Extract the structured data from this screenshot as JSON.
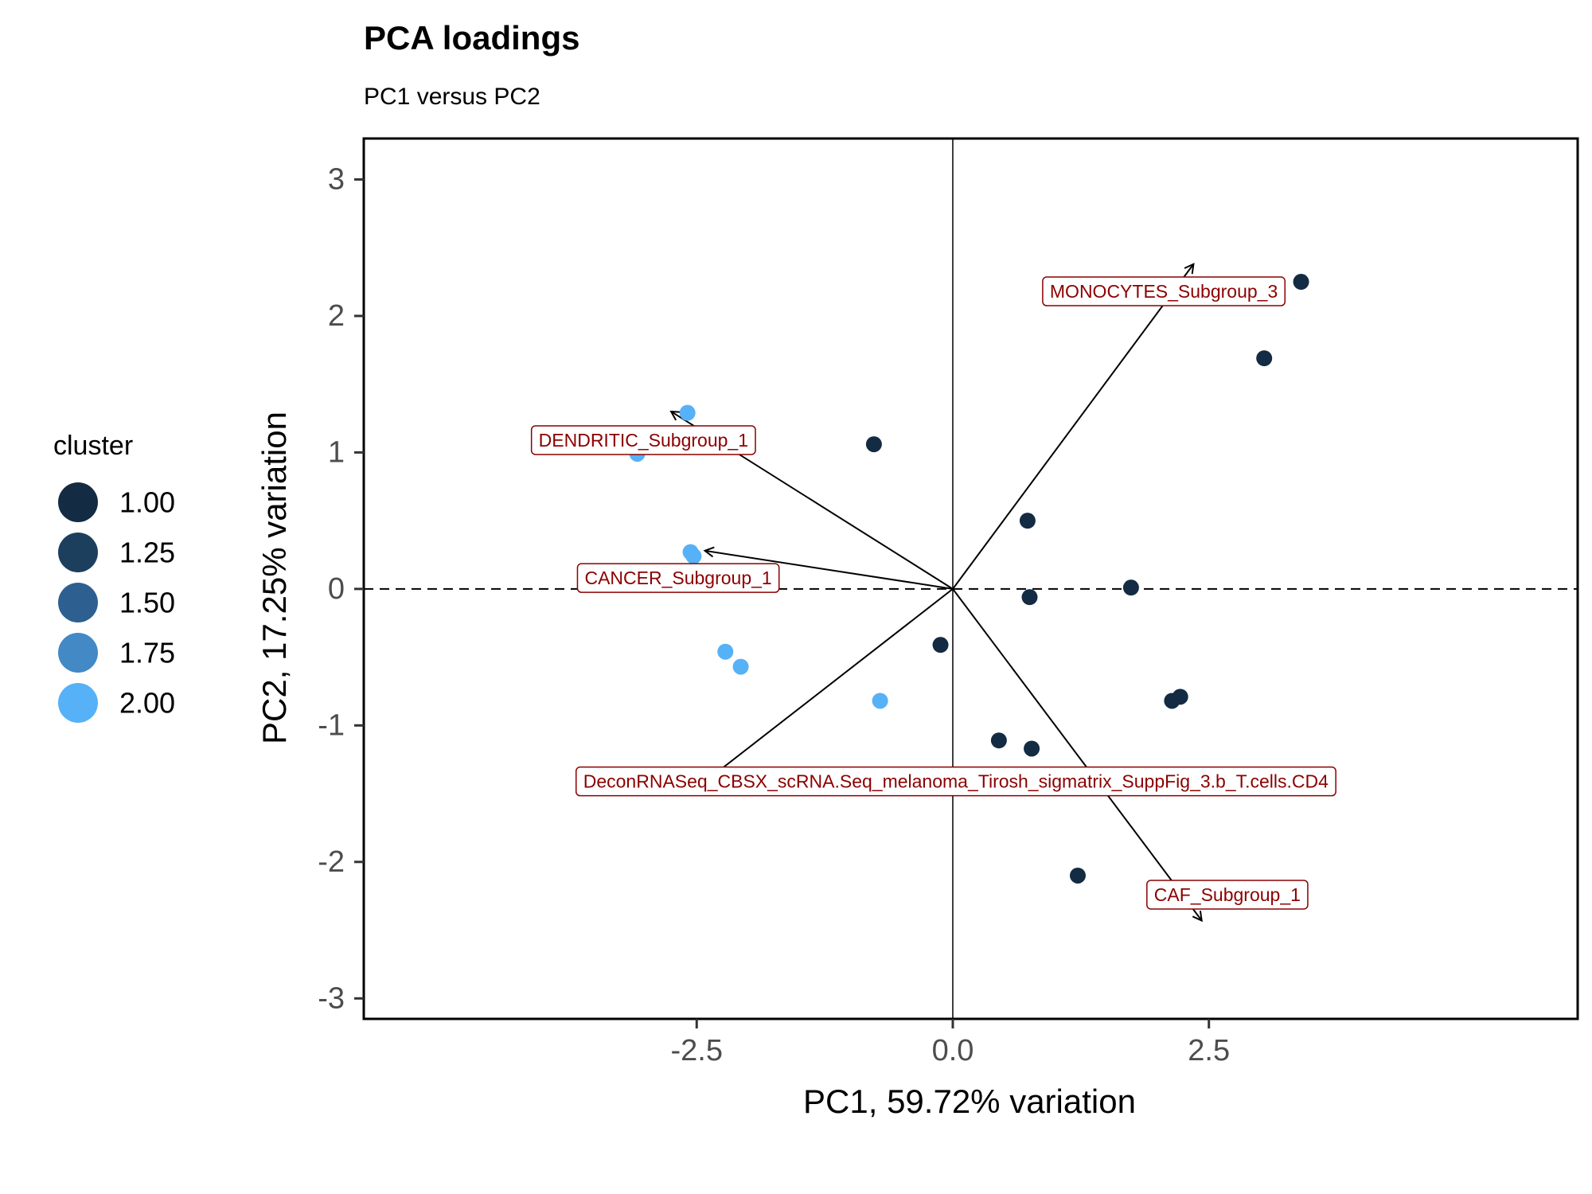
{
  "chart_data": {
    "type": "scatter",
    "title": "PCA loadings",
    "subtitle": "PC1 versus PC2",
    "xlabel": "PC1, 59.72% variation",
    "ylabel": "PC2, 17.25% variation",
    "xlim": [
      -5.75,
      6.1
    ],
    "ylim": [
      -3.15,
      3.3
    ],
    "x_ticks": [
      -2.5,
      0.0,
      2.5
    ],
    "x_tick_labels": [
      "-2.5",
      "0.0",
      "2.5"
    ],
    "y_ticks": [
      -3,
      -2,
      -1,
      0,
      1,
      2,
      3
    ],
    "y_tick_labels": [
      "-3",
      "-2",
      "-1",
      "0",
      "1",
      "2",
      "3"
    ],
    "grid": false,
    "reference_lines": {
      "vertical_x": 0,
      "horizontal_y": 0
    },
    "legend": {
      "title": "cluster",
      "position": "left",
      "entries": [
        {
          "label": "1.00",
          "value": 1.0,
          "color": "#132b43"
        },
        {
          "label": "1.25",
          "value": 1.25,
          "color": "#1d3f5e"
        },
        {
          "label": "1.50",
          "value": 1.5,
          "color": "#2d6090"
        },
        {
          "label": "1.75",
          "value": 1.75,
          "color": "#4289c5"
        },
        {
          "label": "2.00",
          "value": 2.0,
          "color": "#56b1f7"
        }
      ]
    },
    "points": [
      {
        "x": 3.4,
        "y": 2.25,
        "cluster": 1
      },
      {
        "x": 3.04,
        "y": 1.69,
        "cluster": 1
      },
      {
        "x": -0.77,
        "y": 1.06,
        "cluster": 1
      },
      {
        "x": 0.73,
        "y": 0.5,
        "cluster": 1
      },
      {
        "x": 1.74,
        "y": 0.01,
        "cluster": 1
      },
      {
        "x": 0.75,
        "y": -0.06,
        "cluster": 1
      },
      {
        "x": -0.12,
        "y": -0.41,
        "cluster": 1
      },
      {
        "x": 2.14,
        "y": -0.82,
        "cluster": 1
      },
      {
        "x": 2.22,
        "y": -0.79,
        "cluster": 1
      },
      {
        "x": 0.45,
        "y": -1.11,
        "cluster": 1
      },
      {
        "x": 0.77,
        "y": -1.17,
        "cluster": 1
      },
      {
        "x": 1.22,
        "y": -2.1,
        "cluster": 1
      },
      {
        "x": -2.59,
        "y": 1.29,
        "cluster": 2
      },
      {
        "x": -3.08,
        "y": 0.99,
        "cluster": 2
      },
      {
        "x": -2.56,
        "y": 0.27,
        "cluster": 2
      },
      {
        "x": -2.53,
        "y": 0.24,
        "cluster": 2
      },
      {
        "x": -2.22,
        "y": -0.46,
        "cluster": 2
      },
      {
        "x": -2.07,
        "y": -0.57,
        "cluster": 2
      },
      {
        "x": -0.71,
        "y": -0.82,
        "cluster": 2
      }
    ],
    "loadings": [
      {
        "name": "MONOCYTES_Subgroup_3",
        "x": 2.35,
        "y": 2.38,
        "label_x": 2.06,
        "label_y": 2.18
      },
      {
        "name": "DENDRITIC_Subgroup_1",
        "x": -2.75,
        "y": 1.3,
        "label_x": -3.02,
        "label_y": 1.09
      },
      {
        "name": "CANCER_Subgroup_1",
        "x": -2.42,
        "y": 0.28,
        "label_x": -2.68,
        "label_y": 0.08
      },
      {
        "name": "DeconRNASeq_CBSX_scRNA.Seq_melanoma_Tirosh_sigmatrix_SuppFig_3.b_T.cells.CD4",
        "x": -2.45,
        "y": -1.43,
        "label_x": 0.03,
        "label_y": -1.41
      },
      {
        "name": "CAF_Subgroup_1",
        "x": 2.43,
        "y": -2.43,
        "label_x": 2.68,
        "label_y": -2.24
      }
    ],
    "loading_label_color": "#8b0000"
  }
}
